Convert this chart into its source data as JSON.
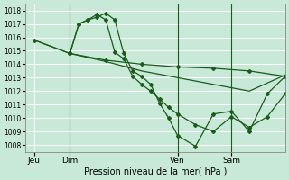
{
  "background_color": "#c8e8d8",
  "grid_color": "#ffffff",
  "line_color": "#1a5c1a",
  "ylim": [
    1007.5,
    1018.5
  ],
  "yticks": [
    1008,
    1009,
    1010,
    1011,
    1012,
    1013,
    1014,
    1015,
    1016,
    1017,
    1018
  ],
  "xlabel": "Pression niveau de la mer( hPa )",
  "xtick_labels": [
    "Jeu",
    "Dim",
    "Ven",
    "Sam"
  ],
  "xtick_positions": [
    0,
    2,
    8,
    11
  ],
  "vlines": [
    2,
    8,
    11
  ],
  "xlim": [
    -0.5,
    14
  ],
  "lines": [
    {
      "x": [
        0,
        2,
        4,
        6,
        8,
        10,
        12,
        14
      ],
      "y": [
        1015.8,
        1014.8,
        1014.3,
        1014.0,
        1013.8,
        1013.7,
        1013.5,
        1013.1
      ],
      "marker": "D",
      "linestyle": "-",
      "lw": 0.9
    },
    {
      "x": [
        2,
        2.5,
        3,
        3.5,
        4,
        4.5,
        5,
        5.5,
        6,
        6.5,
        7,
        7.5,
        8,
        9,
        10,
        11,
        12,
        13,
        14
      ],
      "y": [
        1014.8,
        1017.0,
        1017.3,
        1017.5,
        1017.8,
        1017.3,
        1014.8,
        1013.5,
        1013.1,
        1012.5,
        1011.1,
        1010.0,
        1008.7,
        1007.9,
        1010.3,
        1010.5,
        1009.0,
        1011.8,
        1013.1
      ],
      "marker": "D",
      "linestyle": "-",
      "lw": 0.9
    },
    {
      "x": [
        2,
        2.5,
        3,
        3.5,
        4,
        4.5,
        5,
        5.5,
        6,
        6.5,
        7,
        7.5,
        8,
        9,
        10,
        11,
        12,
        13,
        14
      ],
      "y": [
        1014.8,
        1017.0,
        1017.3,
        1017.7,
        1017.3,
        1014.9,
        1014.4,
        1013.1,
        1012.5,
        1012.0,
        1011.4,
        1010.8,
        1010.3,
        1009.5,
        1009.0,
        1010.1,
        1009.3,
        1010.1,
        1011.8
      ],
      "marker": "D",
      "linestyle": "-",
      "lw": 0.9
    },
    {
      "x": [
        0,
        2,
        4,
        6,
        8,
        10,
        12,
        14
      ],
      "y": [
        1015.8,
        1014.8,
        1014.2,
        1013.5,
        1013.0,
        1012.5,
        1012.0,
        1013.2
      ],
      "marker": null,
      "linestyle": "-",
      "lw": 0.9
    }
  ]
}
